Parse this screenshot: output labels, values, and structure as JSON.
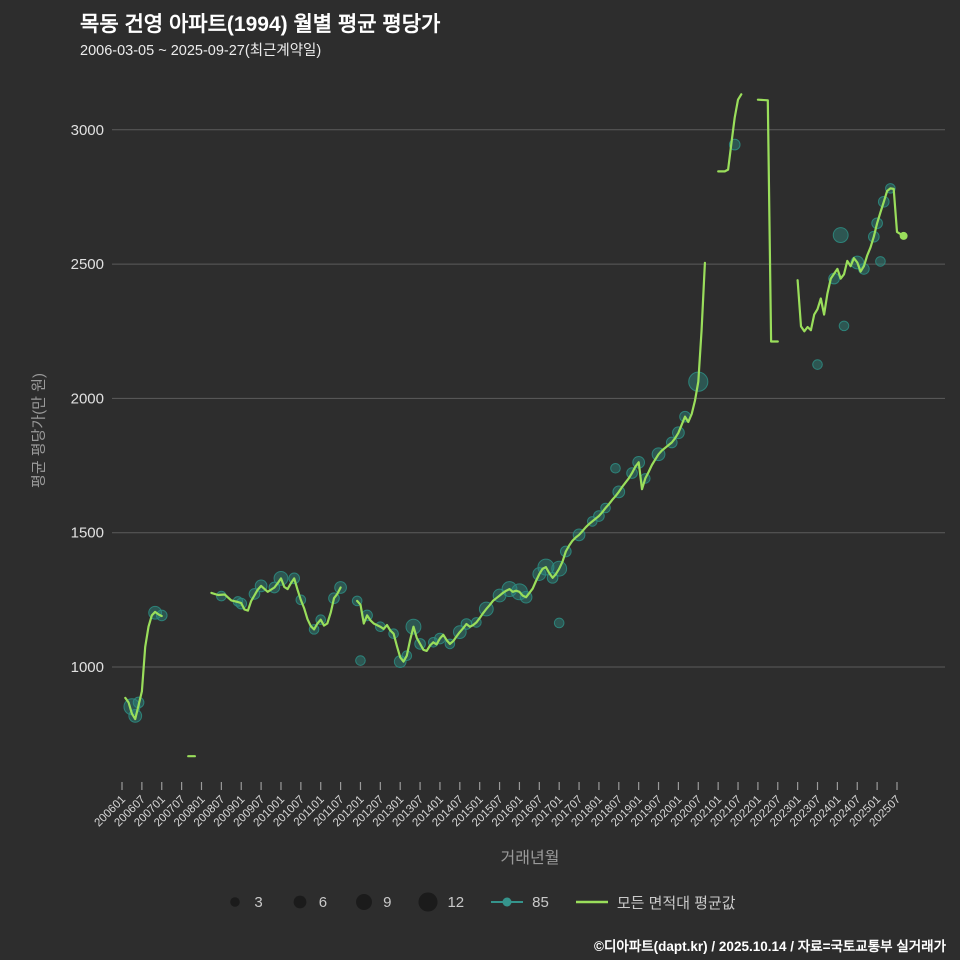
{
  "header": {
    "title": "목동 건영 아파트(1994) 월별 평균 평당가",
    "subtitle": "2006-03-05 ~ 2025-09-27(최근계약일)"
  },
  "footer": {
    "credit": "©디아파트(dapt.kr) / 2025.10.14 / 자료=국토교통부 실거래가"
  },
  "chart_data": {
    "type": "scatter",
    "xlabel": "거래년월",
    "ylabel": "평균 평당가(만 원)",
    "yticks": [
      1000,
      1500,
      2000,
      2500,
      3000
    ],
    "ylim": [
      600,
      3200
    ],
    "grid": true,
    "legend_position": "bottom",
    "xticks": [
      "200601",
      "200607",
      "200701",
      "200707",
      "200801",
      "200807",
      "200901",
      "200907",
      "201001",
      "201007",
      "201101",
      "201107",
      "201201",
      "201207",
      "201301",
      "201307",
      "201401",
      "201407",
      "201501",
      "201507",
      "201601",
      "201607",
      "201701",
      "201707",
      "201801",
      "201807",
      "201901",
      "201907",
      "202001",
      "202007",
      "202101",
      "202107",
      "202201",
      "202207",
      "202301",
      "202307",
      "202401",
      "202407",
      "202501",
      "202507"
    ],
    "size_legend": [
      3,
      6,
      9,
      12
    ],
    "line_series": {
      "name": "모든 면적대 평균값",
      "color": "#9ade5b",
      "segments": [
        [
          [
            "200602",
            885
          ],
          [
            "200603",
            868
          ],
          [
            "200604",
            826
          ],
          [
            "200605",
            806
          ],
          [
            "200606",
            858
          ],
          [
            "200607",
            910
          ],
          [
            "200608",
            1075
          ],
          [
            "200609",
            1150
          ],
          [
            "200610",
            1192
          ],
          [
            "200611",
            1205
          ],
          [
            "200612",
            1196
          ],
          [
            "200701",
            1190
          ]
        ],
        [
          [
            "200709",
            668
          ],
          [
            "200711",
            668
          ]
        ],
        [
          [
            "200804",
            1276
          ],
          [
            "200806",
            1268
          ],
          [
            "200808",
            1270
          ],
          [
            "200810",
            1248
          ],
          [
            "200812",
            1242
          ],
          [
            "200901",
            1238
          ],
          [
            "200902",
            1214
          ],
          [
            "200903",
            1210
          ],
          [
            "200904",
            1246
          ],
          [
            "200906",
            1288
          ],
          [
            "200907",
            1302
          ],
          [
            "200909",
            1280
          ],
          [
            "200911",
            1296
          ],
          [
            "200912",
            1312
          ],
          [
            "201001",
            1330
          ],
          [
            "201002",
            1298
          ],
          [
            "201003",
            1290
          ],
          [
            "201004",
            1312
          ],
          [
            "201005",
            1330
          ],
          [
            "201006",
            1288
          ],
          [
            "201007",
            1250
          ],
          [
            "201008",
            1218
          ],
          [
            "201009",
            1178
          ],
          [
            "201010",
            1152
          ],
          [
            "201011",
            1140
          ],
          [
            "201012",
            1162
          ],
          [
            "201101",
            1176
          ],
          [
            "201102",
            1154
          ],
          [
            "201103",
            1162
          ],
          [
            "201104",
            1202
          ],
          [
            "201105",
            1256
          ],
          [
            "201106",
            1272
          ],
          [
            "201107",
            1296
          ]
        ],
        [
          [
            "201112",
            1246
          ],
          [
            "201201",
            1232
          ],
          [
            "201202",
            1162
          ],
          [
            "201203",
            1192
          ],
          [
            "201204",
            1174
          ],
          [
            "201205",
            1162
          ],
          [
            "201206",
            1156
          ],
          [
            "201207",
            1150
          ],
          [
            "201208",
            1142
          ],
          [
            "201209",
            1156
          ],
          [
            "201210",
            1136
          ],
          [
            "201211",
            1124
          ],
          [
            "201212",
            1078
          ],
          [
            "201301",
            1036
          ],
          [
            "201302",
            1020
          ],
          [
            "201303",
            1042
          ],
          [
            "201304",
            1100
          ],
          [
            "201305",
            1150
          ],
          [
            "201306",
            1108
          ],
          [
            "201307",
            1086
          ],
          [
            "201308",
            1064
          ],
          [
            "201309",
            1060
          ],
          [
            "201310",
            1080
          ],
          [
            "201311",
            1092
          ],
          [
            "201312",
            1084
          ],
          [
            "201401",
            1106
          ],
          [
            "201402",
            1120
          ],
          [
            "201403",
            1100
          ],
          [
            "201404",
            1086
          ],
          [
            "201405",
            1096
          ],
          [
            "201406",
            1114
          ],
          [
            "201407",
            1130
          ],
          [
            "201408",
            1144
          ],
          [
            "201409",
            1160
          ],
          [
            "201410",
            1150
          ],
          [
            "201411",
            1156
          ],
          [
            "201412",
            1166
          ],
          [
            "201501",
            1182
          ],
          [
            "201502",
            1200
          ],
          [
            "201503",
            1216
          ],
          [
            "201504",
            1230
          ],
          [
            "201505",
            1246
          ],
          [
            "201506",
            1256
          ],
          [
            "201507",
            1266
          ],
          [
            "201508",
            1276
          ],
          [
            "201509",
            1284
          ],
          [
            "201510",
            1290
          ],
          [
            "201511",
            1280
          ],
          [
            "201512",
            1284
          ],
          [
            "201601",
            1280
          ],
          [
            "201602",
            1266
          ],
          [
            "201603",
            1260
          ],
          [
            "201604",
            1276
          ],
          [
            "201605",
            1292
          ],
          [
            "201606",
            1320
          ],
          [
            "201607",
            1346
          ],
          [
            "201608",
            1366
          ],
          [
            "201609",
            1372
          ],
          [
            "201610",
            1350
          ],
          [
            "201611",
            1332
          ],
          [
            "201612",
            1346
          ],
          [
            "201701",
            1366
          ],
          [
            "201702",
            1392
          ],
          [
            "201703",
            1430
          ],
          [
            "201704",
            1452
          ],
          [
            "201705",
            1470
          ],
          [
            "201706",
            1482
          ],
          [
            "201707",
            1492
          ],
          [
            "201708",
            1506
          ],
          [
            "201709",
            1520
          ],
          [
            "201710",
            1532
          ],
          [
            "201711",
            1542
          ],
          [
            "201712",
            1552
          ],
          [
            "201801",
            1562
          ],
          [
            "201802",
            1576
          ],
          [
            "201803",
            1592
          ],
          [
            "201804",
            1606
          ],
          [
            "201805",
            1622
          ],
          [
            "201806",
            1636
          ],
          [
            "201807",
            1652
          ],
          [
            "201808",
            1670
          ],
          [
            "201809",
            1686
          ],
          [
            "201810",
            1702
          ],
          [
            "201811",
            1722
          ],
          [
            "201812",
            1746
          ],
          [
            "201901",
            1762
          ],
          [
            "201902",
            1662
          ],
          [
            "201903",
            1702
          ],
          [
            "201904",
            1726
          ],
          [
            "201905",
            1752
          ],
          [
            "201906",
            1772
          ],
          [
            "201907",
            1792
          ],
          [
            "201908",
            1806
          ],
          [
            "201909",
            1816
          ],
          [
            "201910",
            1826
          ],
          [
            "201911",
            1836
          ],
          [
            "201912",
            1852
          ],
          [
            "202001",
            1872
          ],
          [
            "202002",
            1902
          ],
          [
            "202003",
            1932
          ],
          [
            "202004",
            1912
          ],
          [
            "202005",
            1942
          ],
          [
            "202006",
            1992
          ],
          [
            "202007",
            2062
          ],
          [
            "202008",
            2255
          ],
          [
            "202009",
            2505
          ]
        ],
        [
          [
            "202101",
            2845
          ],
          [
            "202103",
            2845
          ],
          [
            "202104",
            2852
          ],
          [
            "202105",
            2950
          ],
          [
            "202106",
            3045
          ],
          [
            "202107",
            3112
          ],
          [
            "202108",
            3132
          ]
        ],
        [
          [
            "202201",
            3112
          ],
          [
            "202204",
            3110
          ],
          [
            "202205",
            2212
          ],
          [
            "202207",
            2212
          ]
        ],
        [
          [
            "202301",
            2440
          ],
          [
            "202302",
            2268
          ],
          [
            "202303",
            2250
          ],
          [
            "202304",
            2266
          ],
          [
            "202305",
            2254
          ],
          [
            "202306",
            2312
          ],
          [
            "202307",
            2332
          ],
          [
            "202308",
            2372
          ],
          [
            "202309",
            2312
          ],
          [
            "202310",
            2390
          ],
          [
            "202311",
            2446
          ],
          [
            "202312",
            2464
          ],
          [
            "202401",
            2482
          ],
          [
            "202402",
            2446
          ],
          [
            "202403",
            2462
          ],
          [
            "202404",
            2512
          ],
          [
            "202405",
            2492
          ],
          [
            "202406",
            2522
          ],
          [
            "202407",
            2506
          ],
          [
            "202408",
            2472
          ],
          [
            "202409",
            2492
          ],
          [
            "202410",
            2532
          ],
          [
            "202411",
            2562
          ],
          [
            "202412",
            2602
          ],
          [
            "202501",
            2652
          ],
          [
            "202502",
            2692
          ],
          [
            "202503",
            2732
          ],
          [
            "202504",
            2772
          ],
          [
            "202505",
            2782
          ],
          [
            "202506",
            2780
          ],
          [
            "202507",
            2620
          ],
          [
            "202509",
            2605
          ]
        ]
      ]
    },
    "bubble_series": {
      "name": "85",
      "color": "#2e8a80",
      "fill_opacity": 0.45,
      "points": [
        [
          "200604",
          852,
          9
        ],
        [
          "200605",
          818,
          6
        ],
        [
          "200606",
          868,
          4
        ],
        [
          "200611",
          1202,
          6
        ],
        [
          "200701",
          1192,
          4
        ],
        [
          "200807",
          1264,
          3
        ],
        [
          "200812",
          1244,
          3
        ],
        [
          "200901",
          1236,
          4
        ],
        [
          "200905",
          1272,
          4
        ],
        [
          "200907",
          1302,
          5
        ],
        [
          "200911",
          1296,
          4
        ],
        [
          "201001",
          1330,
          7
        ],
        [
          "201005",
          1330,
          4
        ],
        [
          "201007",
          1250,
          3
        ],
        [
          "201011",
          1140,
          3
        ],
        [
          "201101",
          1176,
          3
        ],
        [
          "201105",
          1256,
          4
        ],
        [
          "201107",
          1296,
          5
        ],
        [
          "201112",
          1246,
          3
        ],
        [
          "201201",
          1024,
          3
        ],
        [
          "201203",
          1192,
          4
        ],
        [
          "201207",
          1150,
          3
        ],
        [
          "201211",
          1124,
          3
        ],
        [
          "201301",
          1020,
          5
        ],
        [
          "201303",
          1042,
          3
        ],
        [
          "201305",
          1150,
          8
        ],
        [
          "201307",
          1086,
          4
        ],
        [
          "201311",
          1092,
          3
        ],
        [
          "201401",
          1106,
          4
        ],
        [
          "201404",
          1086,
          3
        ],
        [
          "201407",
          1130,
          6
        ],
        [
          "201409",
          1160,
          4
        ],
        [
          "201412",
          1166,
          3
        ],
        [
          "201503",
          1216,
          7
        ],
        [
          "201507",
          1266,
          6
        ],
        [
          "201510",
          1290,
          8
        ],
        [
          "201601",
          1280,
          9
        ],
        [
          "201603",
          1260,
          5
        ],
        [
          "201607",
          1346,
          6
        ],
        [
          "201609",
          1372,
          9
        ],
        [
          "201611",
          1332,
          4
        ],
        [
          "201701",
          1366,
          8
        ],
        [
          "201701",
          1164,
          3
        ],
        [
          "201703",
          1430,
          4
        ],
        [
          "201707",
          1492,
          5
        ],
        [
          "201711",
          1542,
          3
        ],
        [
          "201801",
          1562,
          4
        ],
        [
          "201803",
          1592,
          3
        ],
        [
          "201806",
          1740,
          3
        ],
        [
          "201807",
          1652,
          5
        ],
        [
          "201811",
          1722,
          4
        ],
        [
          "201901",
          1762,
          5
        ],
        [
          "201903",
          1702,
          3
        ],
        [
          "201907",
          1792,
          6
        ],
        [
          "201911",
          1836,
          4
        ],
        [
          "202001",
          1872,
          5
        ],
        [
          "202003",
          1932,
          4
        ],
        [
          "202007",
          2062,
          12
        ],
        [
          "202106",
          2945,
          4
        ],
        [
          "202307",
          2126,
          3
        ],
        [
          "202312",
          2446,
          4
        ],
        [
          "202402",
          2608,
          8
        ],
        [
          "202403",
          2270,
          3
        ],
        [
          "202407",
          2506,
          6
        ],
        [
          "202409",
          2482,
          4
        ],
        [
          "202412",
          2602,
          4
        ],
        [
          "202501",
          2652,
          4
        ],
        [
          "202502",
          2510,
          3
        ],
        [
          "202503",
          2732,
          4
        ],
        [
          "202505",
          2782,
          3
        ]
      ]
    }
  }
}
